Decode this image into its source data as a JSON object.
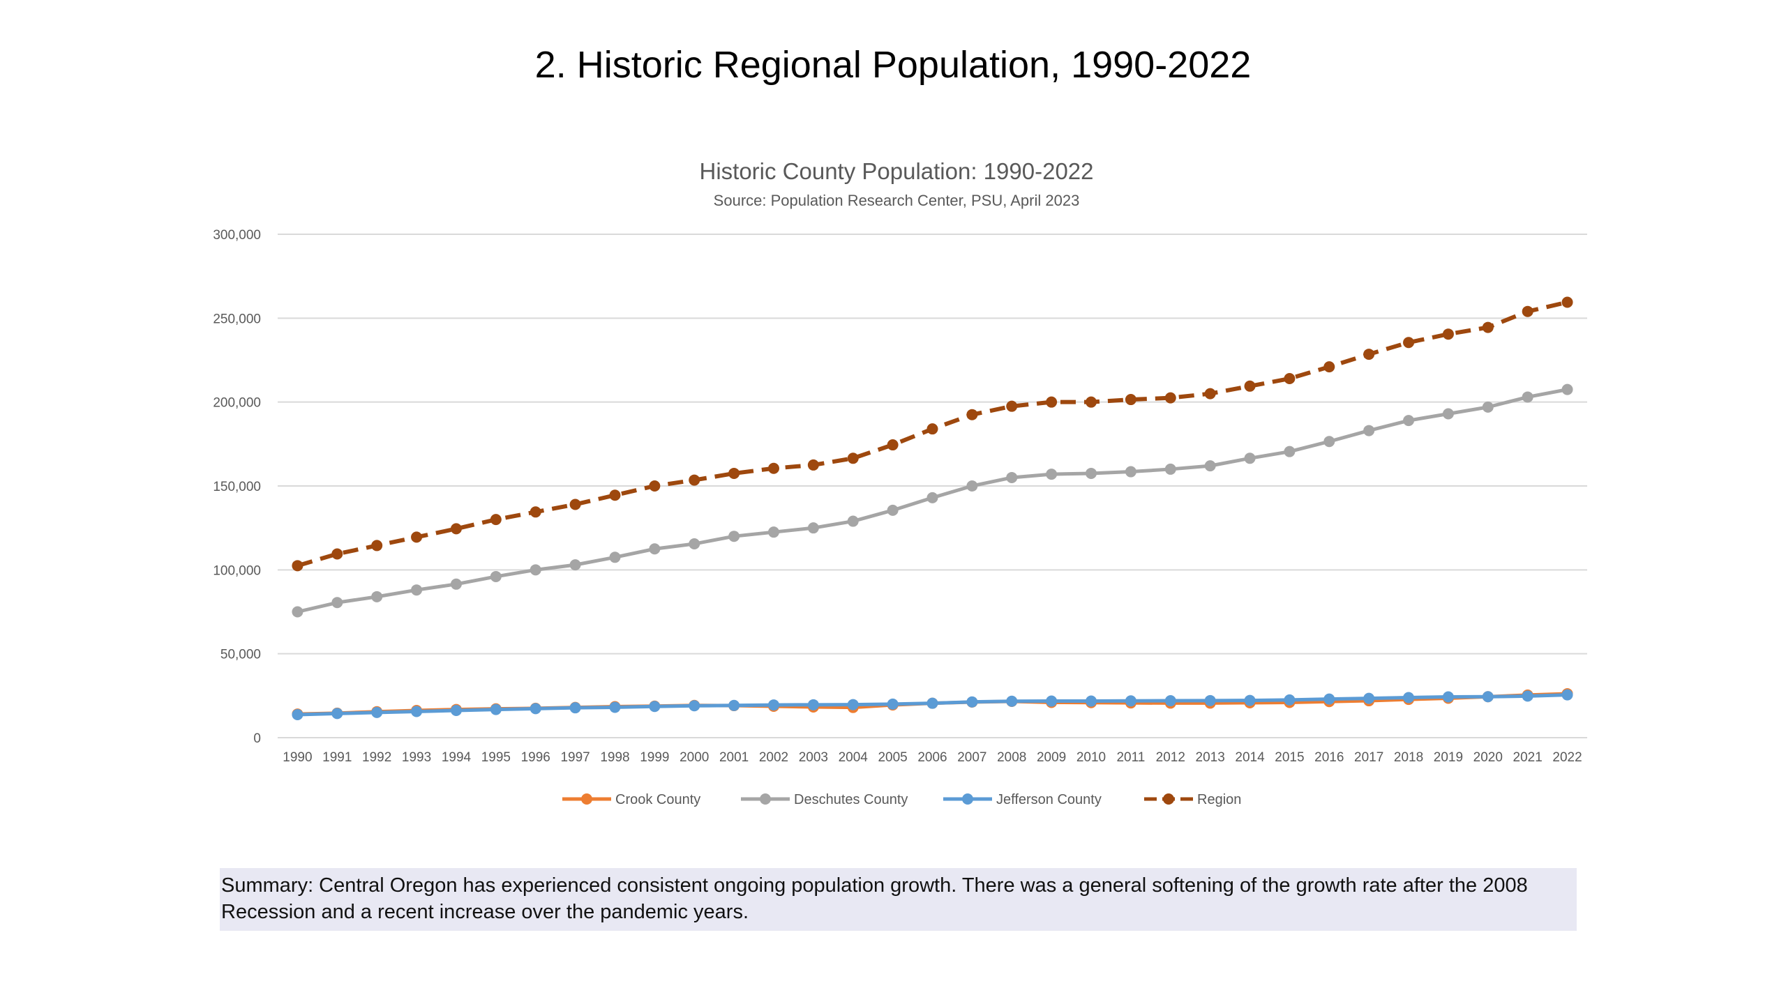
{
  "slide": {
    "title": "2. Historic Regional Population, 1990-2022",
    "summary": "Summary: Central Oregon has experienced consistent ongoing population growth. There was a general softening of the growth rate after the 2008 Recession and a recent increase over the pandemic years."
  },
  "chart_data": {
    "type": "line",
    "title": "Historic County Population: 1990-2022",
    "subtitle": "Source: Population Research Center, PSU, April 2023",
    "xlabel": "",
    "ylabel": "",
    "ylim": [
      0,
      300000
    ],
    "yticks": [
      0,
      50000,
      100000,
      150000,
      200000,
      250000,
      300000
    ],
    "ytick_labels": [
      "0",
      "50,000",
      "100,000",
      "150,000",
      "200,000",
      "250,000",
      "300,000"
    ],
    "grid": true,
    "legend_position": "bottom",
    "categories": [
      "1990",
      "1991",
      "1992",
      "1993",
      "1994",
      "1995",
      "1996",
      "1997",
      "1998",
      "1999",
      "2000",
      "2001",
      "2002",
      "2003",
      "2004",
      "2005",
      "2006",
      "2007",
      "2008",
      "2009",
      "2010",
      "2011",
      "2012",
      "2013",
      "2014",
      "2015",
      "2016",
      "2017",
      "2018",
      "2019",
      "2020",
      "2021",
      "2022"
    ],
    "series": [
      {
        "name": "Crook County",
        "color": "#ed7d31",
        "dashed": false,
        "values": [
          14100,
          14600,
          15500,
          16200,
          16800,
          17200,
          17500,
          18000,
          18500,
          18800,
          19200,
          19100,
          18700,
          18300,
          18000,
          19500,
          20500,
          21200,
          21600,
          21000,
          20900,
          20700,
          20600,
          20600,
          20800,
          21000,
          21500,
          22000,
          22800,
          23500,
          24400,
          25400,
          26200
        ]
      },
      {
        "name": "Deschutes County",
        "color": "#a5a5a5",
        "dashed": false,
        "values": [
          75000,
          80500,
          84000,
          88000,
          91500,
          96000,
          100000,
          103000,
          107500,
          112500,
          115500,
          120000,
          122500,
          125000,
          129000,
          135500,
          143000,
          150000,
          155000,
          157000,
          157500,
          158500,
          160000,
          162000,
          166500,
          170500,
          176500,
          183000,
          189000,
          193000,
          197000,
          203000,
          207500
        ]
      },
      {
        "name": "Jefferson County",
        "color": "#5b9bd5",
        "dashed": false,
        "values": [
          13700,
          14400,
          15000,
          15600,
          16200,
          16800,
          17300,
          17800,
          18100,
          18600,
          19000,
          19200,
          19500,
          19600,
          19700,
          20000,
          20500,
          21300,
          21700,
          21800,
          21800,
          21900,
          22000,
          22100,
          22200,
          22500,
          23000,
          23400,
          23900,
          24300,
          24400,
          24800,
          25500
        ]
      },
      {
        "name": "Region",
        "color": "#9e480e",
        "dashed": true,
        "values": [
          102500,
          109500,
          114500,
          119500,
          124500,
          130000,
          134500,
          139000,
          144500,
          150000,
          153500,
          157500,
          160500,
          162500,
          166500,
          174500,
          184000,
          192500,
          197500,
          200000,
          200000,
          201500,
          202500,
          205000,
          209500,
          214000,
          221000,
          228500,
          235500,
          240500,
          244500,
          254000,
          259500
        ]
      }
    ]
  }
}
